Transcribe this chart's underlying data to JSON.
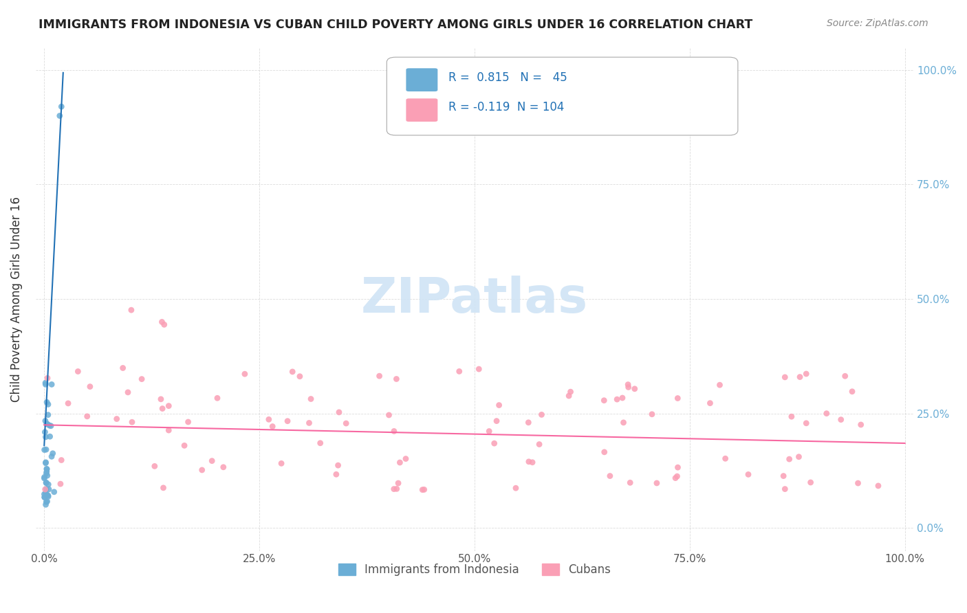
{
  "title": "IMMIGRANTS FROM INDONESIA VS CUBAN CHILD POVERTY AMONG GIRLS UNDER 16 CORRELATION CHART",
  "source": "Source: ZipAtlas.com",
  "ylabel": "Child Poverty Among Girls Under 16",
  "xlabel": "",
  "R_indonesia": 0.815,
  "N_indonesia": 45,
  "R_cuban": -0.119,
  "N_cuban": 104,
  "blue_color": "#6baed6",
  "pink_color": "#fa9fb5",
  "blue_line_color": "#2171b5",
  "pink_line_color": "#f768a1",
  "legend_text_color": "#2171b5",
  "watermark_color": "#d0e4f5",
  "background_color": "#ffffff",
  "grid_color": "#cccccc"
}
